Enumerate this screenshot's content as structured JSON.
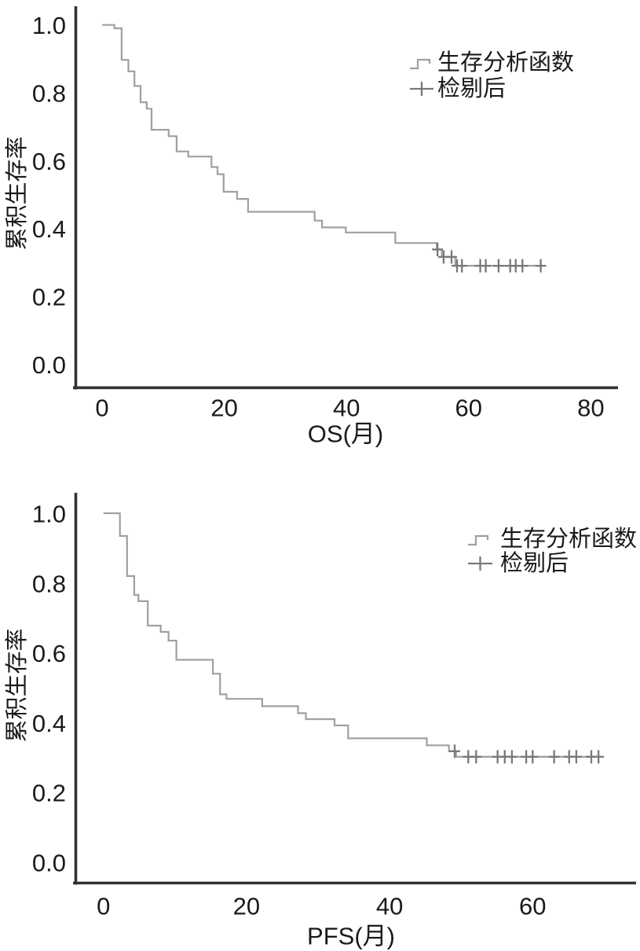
{
  "page": {
    "background": "#ffffff",
    "description": "Two stacked Kaplan-Meier survival curves (OS and PFS)"
  },
  "colors": {
    "curve": "#a0a0a0",
    "censor_mark": "#787878",
    "axis": "#333333",
    "text": "#1a1a1a",
    "background": "#ffffff"
  },
  "chart_data": [
    {
      "type": "line",
      "subtype": "kaplan-meier-step",
      "title": "",
      "xlabel": "OS(月)",
      "ylabel": "累积生存率",
      "x_ticks": [
        0,
        20,
        40,
        60,
        80
      ],
      "y_ticks": [
        "0.0",
        "0.2",
        "0.4",
        "0.6",
        "0.8",
        "1.0"
      ],
      "xlim": [
        0,
        86
      ],
      "ylim": [
        0,
        1.05
      ],
      "grid": false,
      "legend_position": "upper-right",
      "legend": [
        {
          "label": "生存分析函数",
          "symbol": "step-line"
        },
        {
          "label": "检剔后",
          "symbol": "plus"
        }
      ],
      "series": [
        {
          "name": "生存分析函数",
          "steps": [
            [
              0,
              1.0
            ],
            [
              2,
              0.99
            ],
            [
              3.2,
              0.897
            ],
            [
              4.3,
              0.863
            ],
            [
              5.3,
              0.82
            ],
            [
              6.3,
              0.772
            ],
            [
              7.3,
              0.753
            ],
            [
              8.1,
              0.691
            ],
            [
              10.9,
              0.672
            ],
            [
              12.2,
              0.627
            ],
            [
              14.1,
              0.612
            ],
            [
              17.9,
              0.581
            ],
            [
              18.9,
              0.56
            ],
            [
              19.9,
              0.508
            ],
            [
              22.1,
              0.487
            ],
            [
              23.9,
              0.449
            ],
            [
              34.8,
              0.423
            ],
            [
              36.0,
              0.403
            ],
            [
              39.9,
              0.388
            ],
            [
              48.0,
              0.357
            ],
            [
              54.8,
              0.338
            ],
            [
              55.6,
              0.316
            ],
            [
              57.8,
              0.29
            ]
          ],
          "end_time": 72.4,
          "censored": [
            [
              54.9,
              0.338
            ],
            [
              55.9,
              0.316
            ],
            [
              57.2,
              0.316
            ],
            [
              58.1,
              0.29
            ],
            [
              58.9,
              0.29
            ],
            [
              61.9,
              0.29
            ],
            [
              62.8,
              0.29
            ],
            [
              64.9,
              0.29
            ],
            [
              66.8,
              0.29
            ],
            [
              67.7,
              0.29
            ],
            [
              68.8,
              0.29
            ],
            [
              71.8,
              0.29
            ]
          ]
        }
      ]
    },
    {
      "type": "line",
      "subtype": "kaplan-meier-step",
      "title": "",
      "xlabel": "PFS(月)",
      "ylabel": "累积生存率",
      "x_ticks": [
        0,
        20,
        40,
        60
      ],
      "y_ticks": [
        "0.0",
        "0.2",
        "0.4",
        "0.6",
        "0.8",
        "1.0"
      ],
      "xlim": [
        0,
        74.5
      ],
      "ylim": [
        0,
        1.05
      ],
      "grid": false,
      "legend_position": "upper-right",
      "legend": [
        {
          "label": "生存分析函数",
          "symbol": "step-line"
        },
        {
          "label": "检剔后",
          "symbol": "plus"
        }
      ],
      "series": [
        {
          "name": "生存分析函数",
          "steps": [
            [
              0,
              1.0
            ],
            [
              2.3,
              0.935
            ],
            [
              3.3,
              0.82
            ],
            [
              4.3,
              0.766
            ],
            [
              4.9,
              0.748
            ],
            [
              6.2,
              0.678
            ],
            [
              8.0,
              0.66
            ],
            [
              9.1,
              0.635
            ],
            [
              10.2,
              0.58
            ],
            [
              15.3,
              0.54
            ],
            [
              16.3,
              0.481
            ],
            [
              17.2,
              0.468
            ],
            [
              22.2,
              0.447
            ],
            [
              27.2,
              0.427
            ],
            [
              28.3,
              0.41
            ],
            [
              32.3,
              0.392
            ],
            [
              34.2,
              0.355
            ],
            [
              45.2,
              0.335
            ],
            [
              48.3,
              0.318
            ],
            [
              49.3,
              0.302
            ]
          ],
          "end_time": 69.6,
          "censored": [
            [
              49.1,
              0.318
            ],
            [
              51.0,
              0.302
            ],
            [
              52.1,
              0.302
            ],
            [
              55.1,
              0.302
            ],
            [
              56.1,
              0.302
            ],
            [
              57.1,
              0.302
            ],
            [
              59.1,
              0.302
            ],
            [
              60.0,
              0.302
            ],
            [
              63.0,
              0.302
            ],
            [
              65.1,
              0.302
            ],
            [
              66.1,
              0.302
            ],
            [
              68.2,
              0.302
            ],
            [
              69.2,
              0.302
            ]
          ]
        }
      ]
    }
  ]
}
